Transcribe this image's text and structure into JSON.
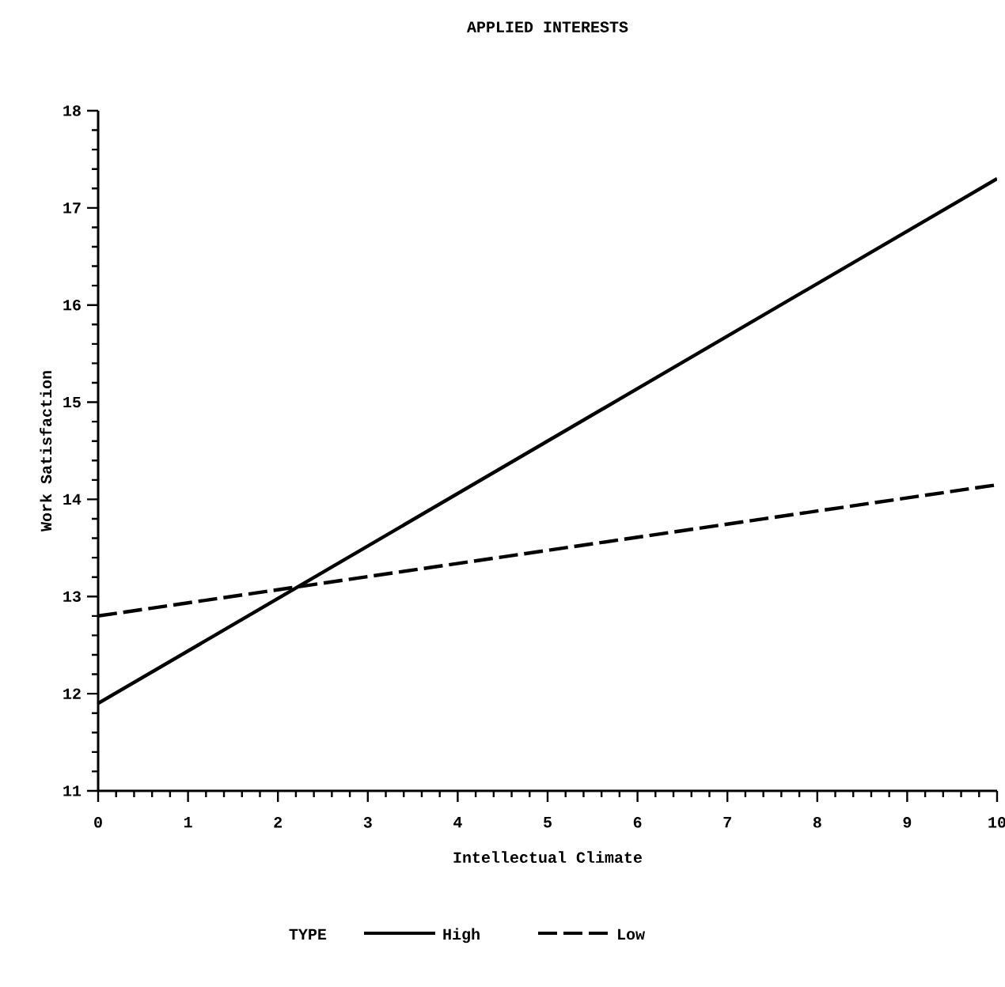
{
  "chart_data": {
    "type": "line",
    "title": "APPLIED INTERESTS",
    "xlabel": "Intellectual Climate",
    "ylabel": "Work Satisfaction",
    "legend_title": "TYPE",
    "legend": "bottom",
    "grid": false,
    "series": [
      {
        "name": "High",
        "color": "#000000",
        "values": [
          11.9,
          17.3
        ],
        "line_style": "solid"
      },
      {
        "name": "Low",
        "color": "#000000",
        "values": [
          12.8,
          14.15
        ],
        "line_style": "dashed"
      }
    ],
    "x": [
      0,
      10
    ],
    "xlim": [
      0,
      10
    ],
    "xticks": [
      0,
      1,
      2,
      3,
      4,
      5,
      6,
      7,
      8,
      9,
      10
    ],
    "ylim": [
      11,
      18
    ],
    "yticks": [
      11,
      12,
      13,
      14,
      15,
      16,
      17,
      18
    ]
  }
}
